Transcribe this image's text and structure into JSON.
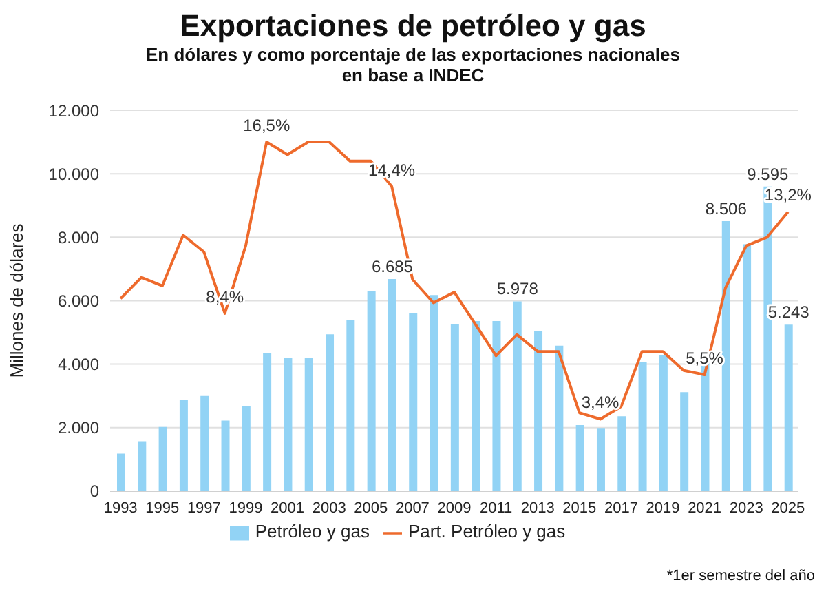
{
  "chart_data": {
    "type": "bar",
    "title": "Exportaciones de petróleo y gas",
    "subtitle": "En dólares y como porcentaje de las exportaciones nacionales",
    "ylabel": "Millones de dólares",
    "annotations": [
      "en base a INDEC",
      "*1er semestre del año"
    ],
    "categories": [
      "1993",
      null,
      "1995",
      null,
      "1997",
      null,
      "1999",
      null,
      "2001",
      null,
      "2003",
      null,
      "2005",
      null,
      "2007",
      null,
      "2009",
      null,
      "2011",
      null,
      "2013",
      null,
      "2015",
      null,
      "2017",
      null,
      "2019",
      null,
      "2021",
      null,
      "2023",
      null,
      "2025"
    ],
    "series": [
      {
        "name": "Petróleo y gas",
        "color": "#92d3f5",
        "values": [
          1180,
          1570,
          2020,
          2860,
          3000,
          2220,
          2670,
          4350,
          4210,
          4210,
          4940,
          5380,
          6300,
          6685,
          5610,
          6180,
          5250,
          5360,
          5360,
          5978,
          5050,
          4580,
          2080,
          1990,
          2360,
          4070,
          4290,
          3120,
          4100,
          8506,
          7780,
          9595,
          5243
        ],
        "value_labels": [
          null,
          null,
          null,
          null,
          null,
          null,
          null,
          null,
          null,
          null,
          null,
          null,
          null,
          "6.685",
          null,
          null,
          null,
          null,
          null,
          "5.978",
          null,
          null,
          null,
          null,
          null,
          null,
          null,
          null,
          null,
          "8.506",
          null,
          "9.595",
          "5.243"
        ]
      },
      {
        "name": "Part. Petróleo y gas",
        "type": "line",
        "axis": "y2",
        "color": "#ee6a2c",
        "values": [
          9.1,
          10.1,
          9.7,
          12.1,
          11.3,
          8.4,
          11.6,
          16.5,
          15.9,
          16.5,
          16.5,
          15.6,
          15.6,
          14.4,
          10.0,
          8.9,
          9.4,
          7.9,
          6.4,
          7.4,
          6.6,
          6.6,
          3.7,
          3.4,
          4.0,
          6.6,
          6.6,
          5.7,
          5.5,
          9.6,
          11.6,
          12.0,
          13.2
        ],
        "value_labels": [
          null,
          null,
          null,
          null,
          null,
          "8,4%",
          null,
          "16,5%",
          null,
          null,
          null,
          null,
          null,
          "14,4%",
          null,
          null,
          null,
          null,
          null,
          null,
          null,
          null,
          null,
          "3,4%",
          null,
          null,
          null,
          null,
          "5,5%",
          null,
          null,
          null,
          "13,2%"
        ]
      }
    ],
    "ylim": [
      0,
      12000
    ],
    "yticks": [
      0,
      {
        "value": 2000,
        "label": "2.000"
      },
      {
        "value": 4000,
        "label": "4.000"
      },
      {
        "value": 6000,
        "label": "6.000"
      },
      {
        "value": 8000,
        "label": "8.000"
      },
      {
        "value": 10000,
        "label": "10.000"
      },
      {
        "value": 12000,
        "label": "12.000"
      }
    ],
    "y2lim": [
      0,
      18
    ],
    "tick_labels": "x_y",
    "grid": "y",
    "legend": "bottom",
    "marker": "none",
    "line_style": "solid"
  }
}
